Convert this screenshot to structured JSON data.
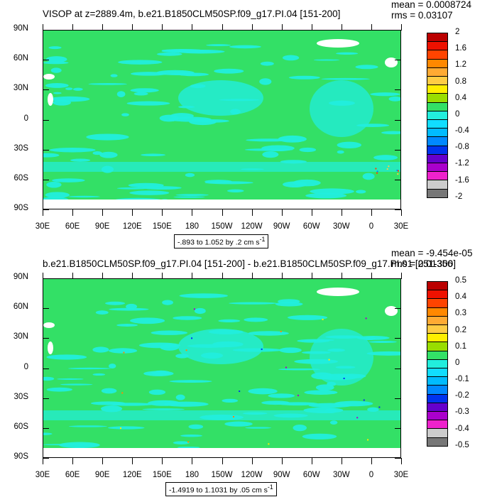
{
  "panels": [
    {
      "title": "VISOP at z=2889.4m, b.e21.B1850CLM50SP.f09_g17.PI.04 [151-200]",
      "mean": "mean = 0.0008724",
      "rms": "rms = 0.03107",
      "range_label": "-.893 to 1.052 by .2 cm s",
      "range_sup": "-1",
      "colorbar_labels": [
        "2",
        "1.6",
        "1.2",
        "0.8",
        "0.4",
        "0",
        "-0.4",
        "-0.8",
        "-1.2",
        "-1.6",
        "-2"
      ]
    },
    {
      "title": "b.e21.B1850CLM50SP.f09_g17.PI.04 [151-200] - b.e21.B1850CLM50SP.f09_g17.PI.01 [251-300]",
      "mean": "mean = -9.454e-05",
      "rms": "rms = 0.01356",
      "range_label": "-1.4919 to 1.1031 by .05 cm s",
      "range_sup": "-1",
      "colorbar_labels": [
        "0.5",
        "0.4",
        "0.3",
        "0.2",
        "0.1",
        "0",
        "-0.1",
        "-0.2",
        "-0.3",
        "-0.4",
        "-0.5"
      ]
    }
  ],
  "axes": {
    "y_labels": [
      "90N",
      "60N",
      "30N",
      "0",
      "30S",
      "60S",
      "90S"
    ],
    "x_labels": [
      "30E",
      "60E",
      "90E",
      "120E",
      "150E",
      "180",
      "150W",
      "120W",
      "90W",
      "60W",
      "30W",
      "0",
      "30E"
    ]
  },
  "colors": {
    "ocean_main": "#33e066",
    "ocean_alt": "#22eedd",
    "land": "#ffffff",
    "palette": [
      "#bb0000",
      "#ee1100",
      "#ff4400",
      "#ff8800",
      "#ffaa33",
      "#ffcc44",
      "#ffee00",
      "#99dd00",
      "#33e066",
      "#22eedd",
      "#11ddff",
      "#00bbff",
      "#0088ff",
      "#0033ee",
      "#6600cc",
      "#aa00cc",
      "#ee22cc",
      "#cccccc",
      "#777777"
    ]
  },
  "chart_data": [
    {
      "type": "heatmap",
      "title": "VISOP at z=2889.4m, b.e21.B1850CLM50SP.f09_g17.PI.04 [151-200]",
      "xlabel": "",
      "ylabel": "",
      "x_range": [
        "30E",
        "30E"
      ],
      "y_range": [
        "90S",
        "90N"
      ],
      "color_levels": [
        2,
        1.6,
        1.2,
        0.8,
        0.4,
        0,
        -0.4,
        -0.8,
        -1.2,
        -1.6,
        -2
      ],
      "field_min": -0.893,
      "field_max": 1.052,
      "contour_interval": 0.2,
      "units": "cm s-1",
      "mean": 0.0008724,
      "rms": 0.03107
    },
    {
      "type": "heatmap",
      "title": "b.e21.B1850CLM50SP.f09_g17.PI.04 [151-200] - b.e21.B1850CLM50SP.f09_g17.PI.01 [251-300]",
      "xlabel": "",
      "ylabel": "",
      "x_range": [
        "30E",
        "30E"
      ],
      "y_range": [
        "90S",
        "90N"
      ],
      "color_levels": [
        0.5,
        0.4,
        0.3,
        0.2,
        0.1,
        0,
        -0.1,
        -0.2,
        -0.3,
        -0.4,
        -0.5
      ],
      "field_min": -1.4919,
      "field_max": 1.1031,
      "contour_interval": 0.05,
      "units": "cm s-1",
      "mean": -9.454e-05,
      "rms": 0.01356
    }
  ]
}
